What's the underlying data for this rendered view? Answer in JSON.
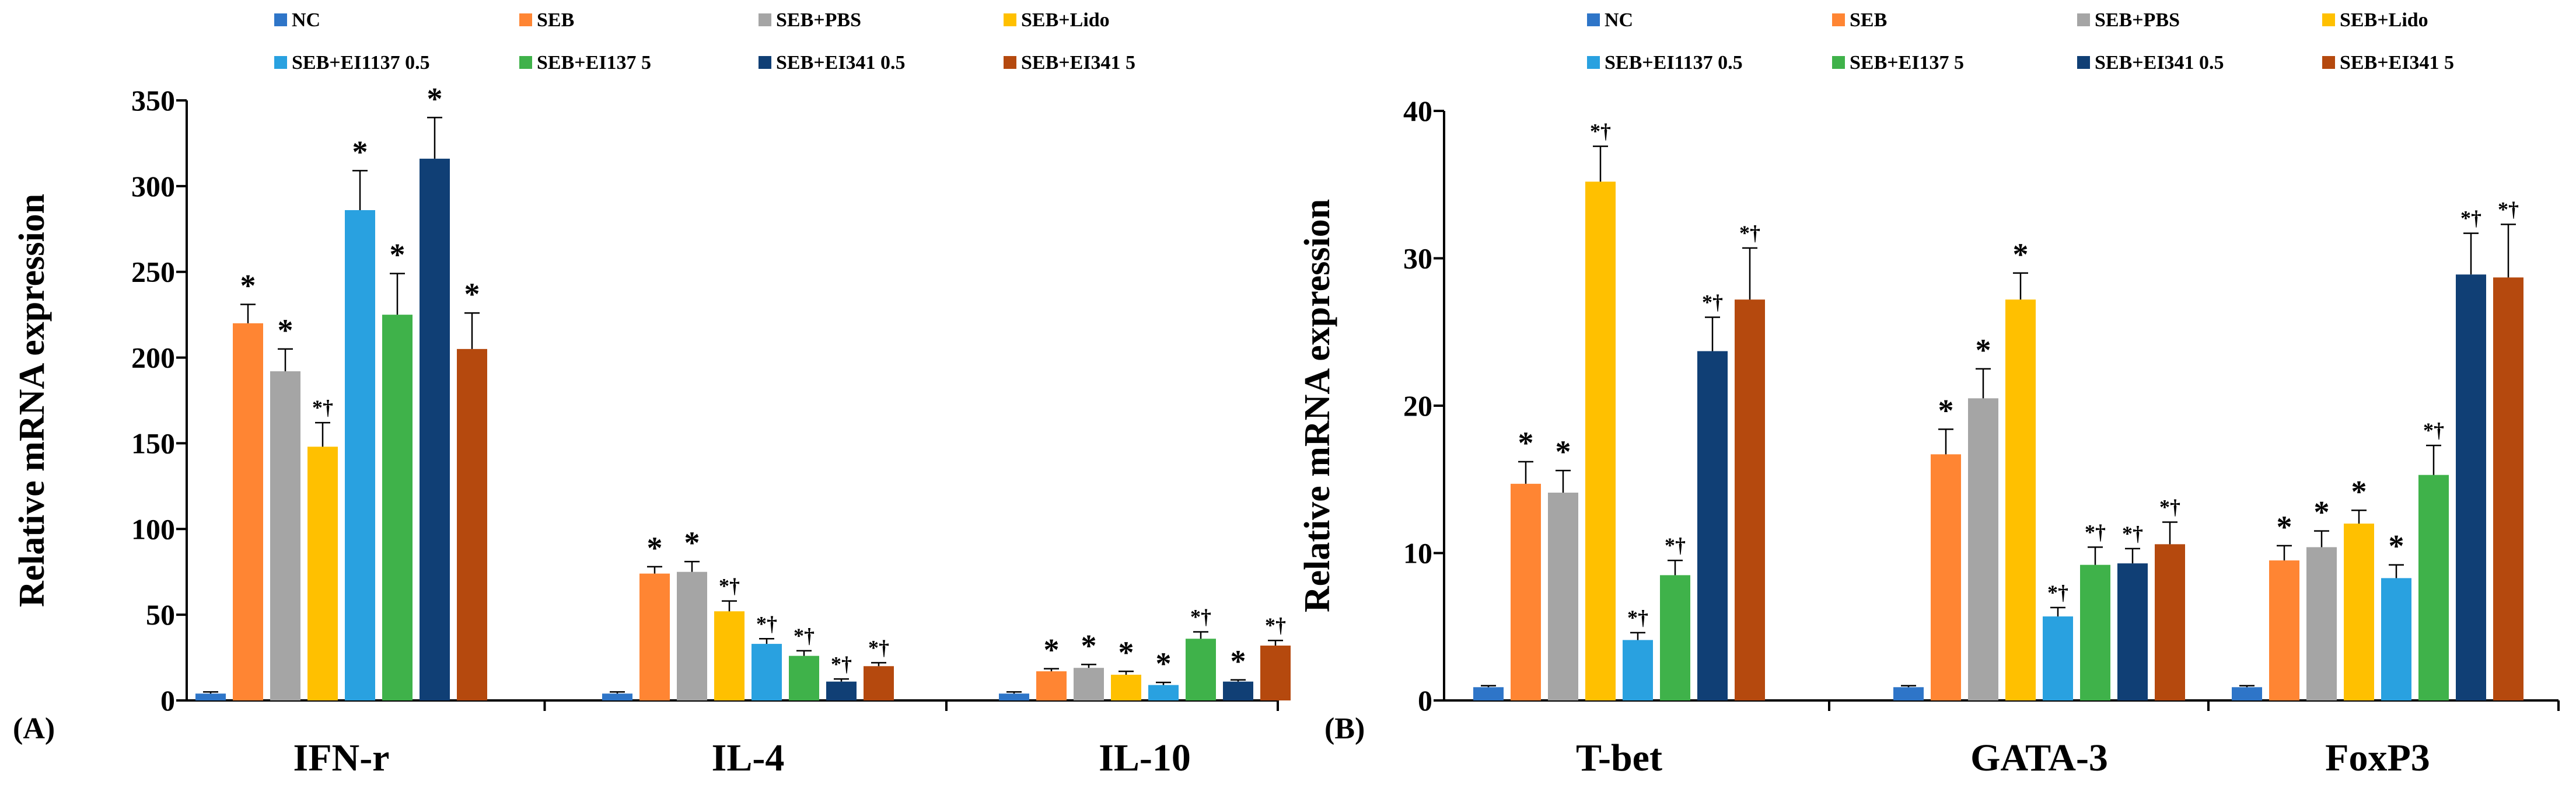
{
  "figure": {
    "legend_labels": [
      "NC",
      "SEB",
      "SEB+PBS",
      "SEB+Lido",
      "SEB+EI1137 0.5",
      "SEB+EI137 5",
      "SEB+EI341 0.5",
      "SEB+EI341 5"
    ],
    "series_colors": [
      "#2E75C8",
      "#FF8533",
      "#A5A5A5",
      "#FFC000",
      "#29A1E0",
      "#3FB24A",
      "#103F75",
      "#B5490E"
    ]
  },
  "chart_data": [
    {
      "type": "bar",
      "panel_label": "(A)",
      "ylabel": "Relative mRNA expression",
      "ylim": [
        0,
        350
      ],
      "yticks": [
        0,
        50,
        100,
        150,
        200,
        250,
        300,
        350
      ],
      "categories": [
        "IFN-r",
        "IL-4",
        "IL-10"
      ],
      "series": [
        {
          "name": "NC",
          "values": [
            4,
            4,
            4
          ],
          "errors": [
            1,
            1,
            1
          ],
          "annotations": [
            "",
            "",
            ""
          ]
        },
        {
          "name": "SEB",
          "values": [
            220,
            74,
            17
          ],
          "errors": [
            11,
            4,
            1.5
          ],
          "annotations": [
            "*",
            "*",
            "*"
          ]
        },
        {
          "name": "SEB+PBS",
          "values": [
            192,
            75,
            19
          ],
          "errors": [
            13,
            6,
            2
          ],
          "annotations": [
            "*",
            "*",
            "*"
          ]
        },
        {
          "name": "SEB+Lido",
          "values": [
            148,
            52,
            15
          ],
          "errors": [
            14,
            6,
            2
          ],
          "annotations": [
            "*†",
            "*†",
            "*"
          ]
        },
        {
          "name": "SEB+EI1137 0.5",
          "values": [
            286,
            33,
            9
          ],
          "errors": [
            23,
            3,
            1.5
          ],
          "annotations": [
            "*",
            "*†",
            "*"
          ]
        },
        {
          "name": "SEB+EI137 5",
          "values": [
            225,
            26,
            36
          ],
          "errors": [
            24,
            3,
            4
          ],
          "annotations": [
            "*",
            "*†",
            "*†"
          ]
        },
        {
          "name": "SEB+EI341 0.5",
          "values": [
            316,
            11,
            11
          ],
          "errors": [
            24,
            1.5,
            1
          ],
          "annotations": [
            "*",
            "*†",
            "*"
          ]
        },
        {
          "name": "SEB+EI341 5",
          "values": [
            205,
            20,
            32
          ],
          "errors": [
            21,
            2,
            3
          ],
          "annotations": [
            "*",
            "*†",
            "*†"
          ]
        }
      ]
    },
    {
      "type": "bar",
      "panel_label": "(B)",
      "ylabel": "Relative mRNA expression",
      "ylim": [
        0,
        40
      ],
      "yticks": [
        0,
        10,
        20,
        30,
        40
      ],
      "categories": [
        "T-bet",
        "GATA-3",
        "FoxP3"
      ],
      "series": [
        {
          "name": "NC",
          "values": [
            0.9,
            0.9,
            0.9
          ],
          "errors": [
            0.1,
            0.1,
            0.1
          ],
          "annotations": [
            "",
            "",
            ""
          ]
        },
        {
          "name": "SEB",
          "values": [
            14.7,
            16.7,
            9.5
          ],
          "errors": [
            1.5,
            1.7,
            1.0
          ],
          "annotations": [
            "*",
            "*",
            "*"
          ]
        },
        {
          "name": "SEB+PBS",
          "values": [
            14.1,
            20.5,
            10.4
          ],
          "errors": [
            1.5,
            2.0,
            1.1
          ],
          "annotations": [
            "*",
            "*",
            "*"
          ]
        },
        {
          "name": "SEB+Lido",
          "values": [
            35.2,
            27.2,
            12.0
          ],
          "errors": [
            2.4,
            1.8,
            0.9
          ],
          "annotations": [
            "*†",
            "*",
            "*"
          ]
        },
        {
          "name": "SEB+EI1137 0.5",
          "values": [
            4.1,
            5.7,
            8.3
          ],
          "errors": [
            0.5,
            0.6,
            0.9
          ],
          "annotations": [
            "*†",
            "*†",
            "*"
          ]
        },
        {
          "name": "SEB+EI137 5",
          "values": [
            8.5,
            9.2,
            15.3
          ],
          "errors": [
            1.0,
            1.2,
            2.0
          ],
          "annotations": [
            "*†",
            "*†",
            "*†"
          ]
        },
        {
          "name": "SEB+EI341 0.5",
          "values": [
            23.7,
            9.3,
            28.9
          ],
          "errors": [
            2.3,
            1.0,
            2.8
          ],
          "annotations": [
            "*†",
            "*†",
            "*†"
          ]
        },
        {
          "name": "SEB+EI341 5",
          "values": [
            27.2,
            10.6,
            28.7
          ],
          "errors": [
            3.5,
            1.5,
            3.6
          ],
          "annotations": [
            "*†",
            "*†",
            "*†"
          ]
        }
      ]
    }
  ]
}
